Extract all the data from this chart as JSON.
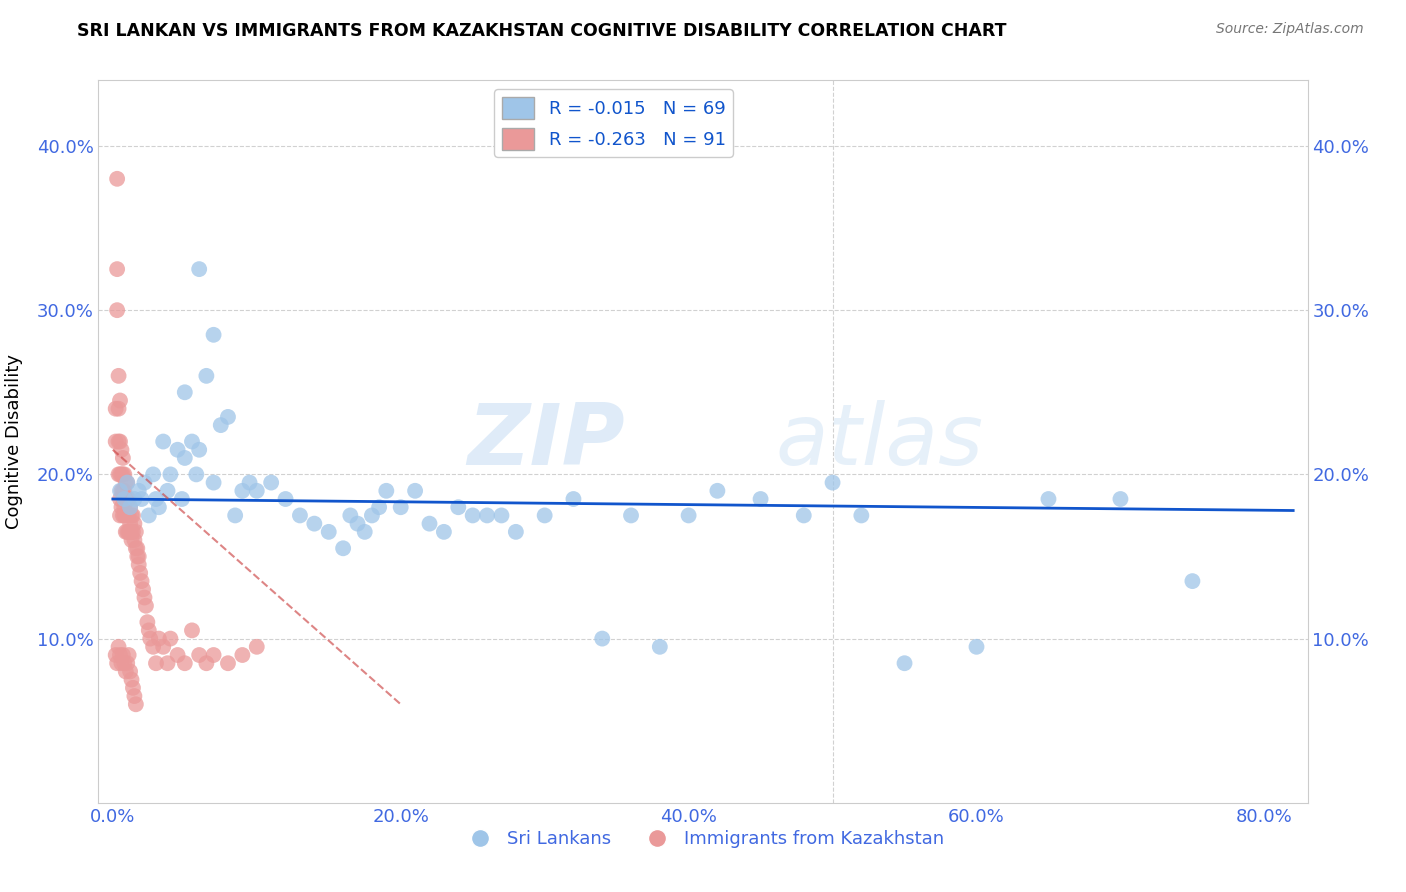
{
  "title": "SRI LANKAN VS IMMIGRANTS FROM KAZAKHSTAN COGNITIVE DISABILITY CORRELATION CHART",
  "source": "Source: ZipAtlas.com",
  "tick_color": "#4169E1",
  "ylabel": "Cognitive Disability",
  "x_tick_labels": [
    "0.0%",
    "20.0%",
    "40.0%",
    "60.0%",
    "80.0%"
  ],
  "x_tick_values": [
    0.0,
    0.2,
    0.4,
    0.6,
    0.8
  ],
  "y_tick_labels": [
    "10.0%",
    "20.0%",
    "30.0%",
    "40.0%"
  ],
  "y_tick_values": [
    0.1,
    0.2,
    0.3,
    0.4
  ],
  "xlim": [
    -0.01,
    0.83
  ],
  "ylim": [
    0.0,
    0.44
  ],
  "blue_color": "#9FC5E8",
  "pink_color": "#EA9999",
  "blue_line_color": "#1155CC",
  "pink_line_color": "#CC4444",
  "watermark_zip": "ZIP",
  "watermark_atlas": "atlas",
  "legend_R_blue": "R = -0.015",
  "legend_N_blue": "N = 69",
  "legend_R_pink": "R = -0.263",
  "legend_N_pink": "N = 91",
  "legend_label_blue": "Sri Lankans",
  "legend_label_pink": "Immigrants from Kazakhstan",
  "blue_scatter_x": [
    0.005,
    0.008,
    0.01,
    0.012,
    0.015,
    0.018,
    0.02,
    0.022,
    0.025,
    0.028,
    0.03,
    0.032,
    0.035,
    0.038,
    0.04,
    0.045,
    0.048,
    0.05,
    0.055,
    0.058,
    0.06,
    0.065,
    0.07,
    0.075,
    0.08,
    0.085,
    0.09,
    0.095,
    0.1,
    0.11,
    0.12,
    0.13,
    0.14,
    0.15,
    0.16,
    0.165,
    0.17,
    0.175,
    0.18,
    0.185,
    0.19,
    0.2,
    0.21,
    0.22,
    0.23,
    0.24,
    0.25,
    0.26,
    0.27,
    0.28,
    0.3,
    0.32,
    0.34,
    0.36,
    0.38,
    0.4,
    0.42,
    0.45,
    0.48,
    0.5,
    0.52,
    0.55,
    0.6,
    0.65,
    0.7,
    0.75,
    0.05,
    0.06,
    0.07
  ],
  "blue_scatter_y": [
    0.19,
    0.185,
    0.195,
    0.18,
    0.185,
    0.19,
    0.185,
    0.195,
    0.175,
    0.2,
    0.185,
    0.18,
    0.22,
    0.19,
    0.2,
    0.215,
    0.185,
    0.21,
    0.22,
    0.2,
    0.215,
    0.26,
    0.195,
    0.23,
    0.235,
    0.175,
    0.19,
    0.195,
    0.19,
    0.195,
    0.185,
    0.175,
    0.17,
    0.165,
    0.155,
    0.175,
    0.17,
    0.165,
    0.175,
    0.18,
    0.19,
    0.18,
    0.19,
    0.17,
    0.165,
    0.18,
    0.175,
    0.175,
    0.175,
    0.165,
    0.175,
    0.185,
    0.1,
    0.175,
    0.095,
    0.175,
    0.19,
    0.185,
    0.175,
    0.195,
    0.175,
    0.085,
    0.095,
    0.185,
    0.185,
    0.135,
    0.25,
    0.325,
    0.285
  ],
  "pink_scatter_x": [
    0.002,
    0.002,
    0.003,
    0.003,
    0.003,
    0.004,
    0.004,
    0.004,
    0.004,
    0.005,
    0.005,
    0.005,
    0.005,
    0.005,
    0.006,
    0.006,
    0.006,
    0.006,
    0.007,
    0.007,
    0.007,
    0.007,
    0.008,
    0.008,
    0.008,
    0.008,
    0.009,
    0.009,
    0.009,
    0.009,
    0.01,
    0.01,
    0.01,
    0.01,
    0.011,
    0.011,
    0.011,
    0.012,
    0.012,
    0.012,
    0.013,
    0.013,
    0.013,
    0.014,
    0.014,
    0.015,
    0.015,
    0.016,
    0.016,
    0.017,
    0.017,
    0.018,
    0.018,
    0.019,
    0.02,
    0.021,
    0.022,
    0.023,
    0.024,
    0.025,
    0.026,
    0.028,
    0.03,
    0.032,
    0.035,
    0.038,
    0.04,
    0.045,
    0.05,
    0.055,
    0.06,
    0.065,
    0.07,
    0.08,
    0.09,
    0.1,
    0.002,
    0.003,
    0.004,
    0.005,
    0.006,
    0.007,
    0.008,
    0.009,
    0.01,
    0.011,
    0.012,
    0.013,
    0.014,
    0.015,
    0.016
  ],
  "pink_scatter_y": [
    0.24,
    0.22,
    0.38,
    0.325,
    0.3,
    0.26,
    0.24,
    0.22,
    0.2,
    0.245,
    0.22,
    0.2,
    0.185,
    0.175,
    0.215,
    0.2,
    0.19,
    0.18,
    0.21,
    0.2,
    0.19,
    0.175,
    0.2,
    0.19,
    0.18,
    0.175,
    0.195,
    0.185,
    0.175,
    0.165,
    0.195,
    0.185,
    0.175,
    0.165,
    0.185,
    0.175,
    0.165,
    0.18,
    0.17,
    0.165,
    0.175,
    0.165,
    0.16,
    0.175,
    0.165,
    0.17,
    0.16,
    0.165,
    0.155,
    0.155,
    0.15,
    0.15,
    0.145,
    0.14,
    0.135,
    0.13,
    0.125,
    0.12,
    0.11,
    0.105,
    0.1,
    0.095,
    0.085,
    0.1,
    0.095,
    0.085,
    0.1,
    0.09,
    0.085,
    0.105,
    0.09,
    0.085,
    0.09,
    0.085,
    0.09,
    0.095,
    0.09,
    0.085,
    0.095,
    0.09,
    0.085,
    0.09,
    0.085,
    0.08,
    0.085,
    0.09,
    0.08,
    0.075,
    0.07,
    0.065,
    0.06
  ],
  "blue_trend_x": [
    0.0,
    0.82
  ],
  "blue_trend_y": [
    0.185,
    0.178
  ],
  "pink_trend_x": [
    0.0,
    0.2
  ],
  "pink_trend_y": [
    0.215,
    0.06
  ]
}
